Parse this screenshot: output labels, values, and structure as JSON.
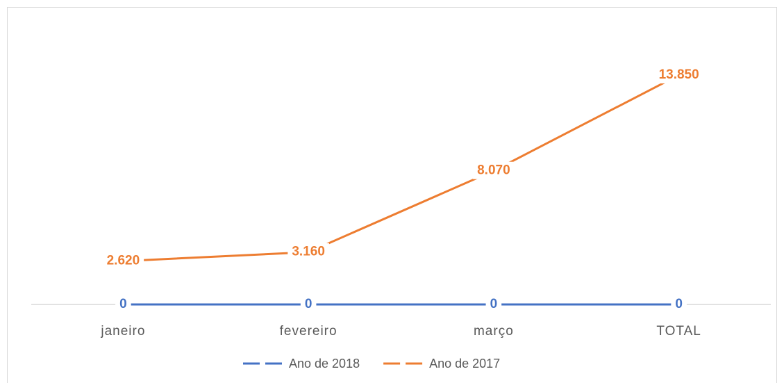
{
  "chart_data": {
    "type": "line",
    "categories": [
      "janeiro",
      "fevereiro",
      "março",
      "TOTAL"
    ],
    "series": [
      {
        "name": "Ano de 2018",
        "color": "#4472c4",
        "values": [
          0,
          0,
          0,
          0
        ]
      },
      {
        "name": "Ano de 2017",
        "color": "#ed7d31",
        "values": [
          2620,
          3160,
          8070,
          13850
        ],
        "value_labels": [
          "2.620",
          "3.160",
          "8.070",
          "13.850"
        ]
      }
    ],
    "legend": "bottom"
  }
}
